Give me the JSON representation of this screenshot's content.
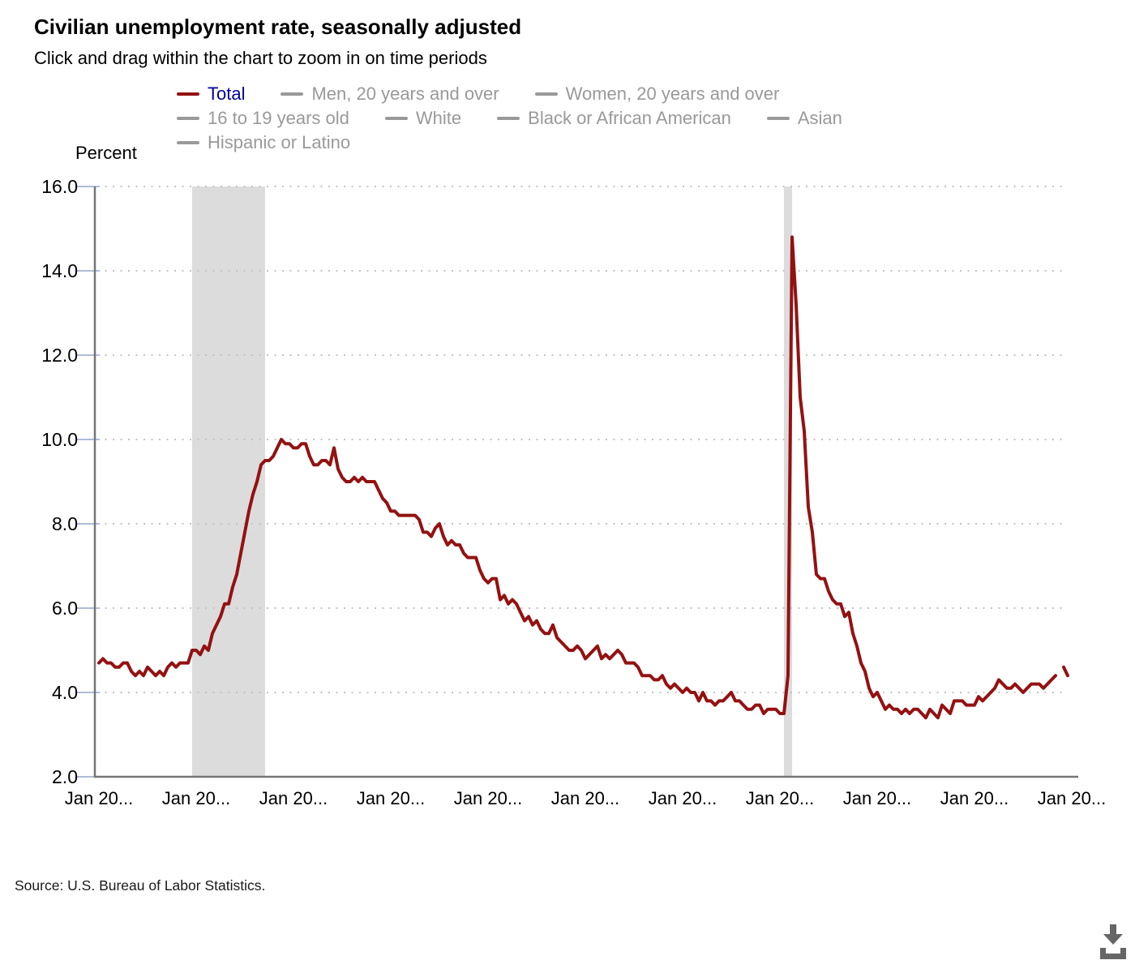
{
  "header": {
    "title": "Civilian unemployment rate, seasonally adjusted",
    "subtitle": "Click and drag within the chart to zoom in on time periods"
  },
  "legend": {
    "active_text_color": "#000099",
    "inactive_color": "#999999",
    "rows": [
      [
        {
          "label": "Total",
          "dash_color": "#941111",
          "text_color": "#000099",
          "active": true
        },
        {
          "label": "Men, 20 years and over",
          "dash_color": "#999999",
          "text_color": "#999999",
          "active": false
        },
        {
          "label": "Women, 20 years and over",
          "dash_color": "#999999",
          "text_color": "#999999",
          "active": false
        }
      ],
      [
        {
          "label": "16 to 19 years old",
          "dash_color": "#999999",
          "text_color": "#999999",
          "active": false
        },
        {
          "label": "White",
          "dash_color": "#999999",
          "text_color": "#999999",
          "active": false
        },
        {
          "label": "Black or African American",
          "dash_color": "#999999",
          "text_color": "#999999",
          "active": false
        },
        {
          "label": "Asian",
          "dash_color": "#999999",
          "text_color": "#999999",
          "active": false
        }
      ],
      [
        {
          "label": "Hispanic or Latino",
          "dash_color": "#999999",
          "text_color": "#999999",
          "active": false
        }
      ]
    ]
  },
  "chart": {
    "y_axis_title": "Percent",
    "colors": {
      "line": "#941111",
      "recession_band": "#dcdcdc",
      "gridline": "#c3c3c3",
      "axis": "#757575",
      "tick_mark": "#aebcd8"
    }
  },
  "chart_data": {
    "type": "line",
    "title": "Civilian unemployment rate, seasonally adjusted",
    "ylabel": "Percent",
    "ylim": [
      2.0,
      16.0
    ],
    "grid": "dotted-horizontal",
    "legend_position": "top",
    "x_start": "Jan 2006",
    "frequency": "monthly",
    "y_ticks": [
      {
        "label": "16.0",
        "value": 16.0
      },
      {
        "label": "14.0",
        "value": 14.0
      },
      {
        "label": "12.0",
        "value": 12.0
      },
      {
        "label": "10.0",
        "value": 10.0
      },
      {
        "label": "8.0",
        "value": 8.0
      },
      {
        "label": "6.0",
        "value": 6.0
      },
      {
        "label": "4.0",
        "value": 4.0
      },
      {
        "label": "2.0",
        "value": 2.0
      }
    ],
    "x_ticks": [
      {
        "label": "Jan 20...",
        "month_index": 0
      },
      {
        "label": "Jan 20...",
        "month_index": 24
      },
      {
        "label": "Jan 20...",
        "month_index": 48
      },
      {
        "label": "Jan 20...",
        "month_index": 72
      },
      {
        "label": "Jan 20...",
        "month_index": 96
      },
      {
        "label": "Jan 20...",
        "month_index": 120
      },
      {
        "label": "Jan 20...",
        "month_index": 144
      },
      {
        "label": "Jan 20...",
        "month_index": 168
      },
      {
        "label": "Jan 20...",
        "month_index": 192
      },
      {
        "label": "Jan 20...",
        "month_index": 216
      },
      {
        "label": "Jan 20...",
        "month_index": 240
      }
    ],
    "recession_shading_month_ranges": [
      [
        23,
        41
      ],
      [
        169,
        171
      ]
    ],
    "series": [
      {
        "name": "Total",
        "color": "#941111",
        "values": [
          4.7,
          4.8,
          4.7,
          4.7,
          4.6,
          4.6,
          4.7,
          4.7,
          4.5,
          4.4,
          4.5,
          4.4,
          4.6,
          4.5,
          4.4,
          4.5,
          4.4,
          4.6,
          4.7,
          4.6,
          4.7,
          4.7,
          4.7,
          5.0,
          5.0,
          4.9,
          5.1,
          5.0,
          5.4,
          5.6,
          5.8,
          6.1,
          6.1,
          6.5,
          6.8,
          7.3,
          7.8,
          8.3,
          8.7,
          9.0,
          9.4,
          9.5,
          9.5,
          9.6,
          9.8,
          10.0,
          9.9,
          9.9,
          9.8,
          9.8,
          9.9,
          9.9,
          9.6,
          9.4,
          9.4,
          9.5,
          9.5,
          9.4,
          9.8,
          9.3,
          9.1,
          9.0,
          9.0,
          9.1,
          9.0,
          9.1,
          9.0,
          9.0,
          9.0,
          8.8,
          8.6,
          8.5,
          8.3,
          8.3,
          8.2,
          8.2,
          8.2,
          8.2,
          8.2,
          8.1,
          7.8,
          7.8,
          7.7,
          7.9,
          8.0,
          7.7,
          7.5,
          7.6,
          7.5,
          7.5,
          7.3,
          7.2,
          7.2,
          7.2,
          6.9,
          6.7,
          6.6,
          6.7,
          6.7,
          6.2,
          6.3,
          6.1,
          6.2,
          6.1,
          5.9,
          5.7,
          5.8,
          5.6,
          5.7,
          5.5,
          5.4,
          5.4,
          5.6,
          5.3,
          5.2,
          5.1,
          5.0,
          5.0,
          5.1,
          5.0,
          4.8,
          4.9,
          5.0,
          5.1,
          4.8,
          4.9,
          4.8,
          4.9,
          5.0,
          4.9,
          4.7,
          4.7,
          4.7,
          4.6,
          4.4,
          4.4,
          4.4,
          4.3,
          4.3,
          4.4,
          4.2,
          4.1,
          4.2,
          4.1,
          4.0,
          4.1,
          4.0,
          4.0,
          3.8,
          4.0,
          3.8,
          3.8,
          3.7,
          3.8,
          3.8,
          3.9,
          4.0,
          3.8,
          3.8,
          3.7,
          3.6,
          3.6,
          3.7,
          3.7,
          3.5,
          3.6,
          3.6,
          3.6,
          3.5,
          3.5,
          4.4,
          14.8,
          13.2,
          11.0,
          10.2,
          8.4,
          7.8,
          6.8,
          6.7,
          6.7,
          6.4,
          6.2,
          6.1,
          6.1,
          5.8,
          5.9,
          5.4,
          5.1,
          4.7,
          4.5,
          4.1,
          3.9,
          4.0,
          3.8,
          3.6,
          3.7,
          3.6,
          3.6,
          3.5,
          3.6,
          3.5,
          3.6,
          3.6,
          3.5,
          3.4,
          3.6,
          3.5,
          3.4,
          3.7,
          3.6,
          3.5,
          3.8,
          3.8,
          3.8,
          3.7,
          3.7,
          3.7,
          3.9,
          3.8,
          3.9,
          4.0,
          4.1,
          4.3,
          4.2,
          4.1,
          4.1,
          4.2,
          4.1,
          4.0,
          4.1,
          4.2,
          4.2,
          4.2,
          4.1,
          4.2,
          4.3,
          4.4,
          null,
          4.6,
          4.4
        ]
      }
    ]
  },
  "footer": {
    "source": "Source: U.S. Bureau of Labor Statistics."
  }
}
